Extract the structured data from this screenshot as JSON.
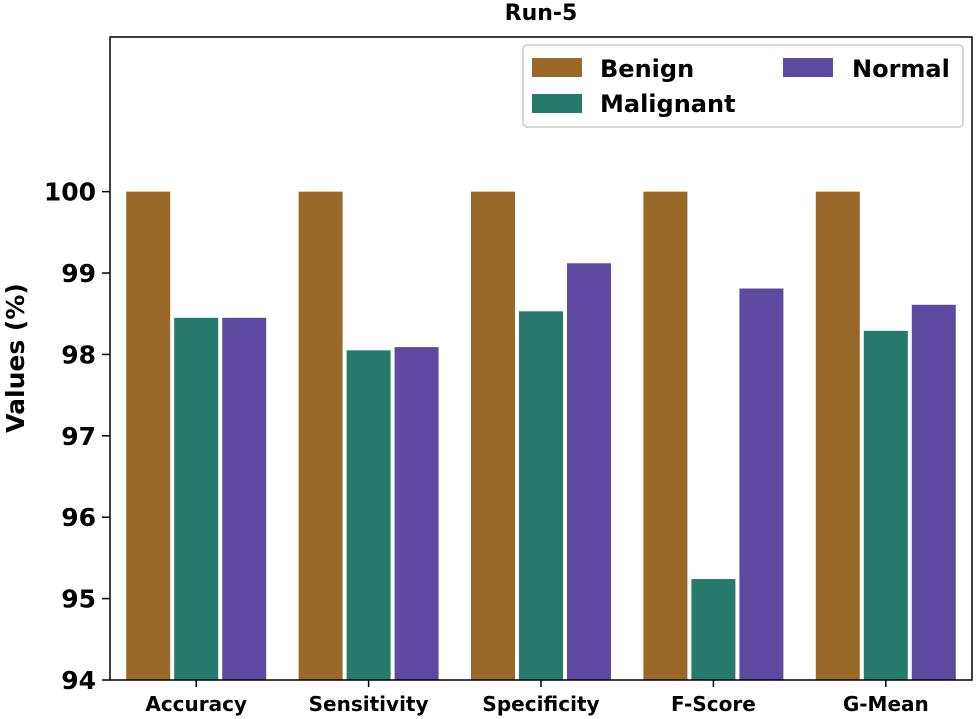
{
  "chart_data": {
    "type": "bar",
    "title": "Run-5",
    "xlabel": "",
    "ylabel": "Values (%)",
    "categories": [
      "Accuracy",
      "Sensitivity",
      "Specificity",
      "F-Score",
      "G-Mean"
    ],
    "series": [
      {
        "name": "Benign",
        "color": "#9a6829",
        "values": [
          100,
          100,
          100,
          100,
          100
        ]
      },
      {
        "name": "Malignant",
        "color": "#257a6b",
        "values": [
          98.45,
          98.05,
          98.53,
          95.24,
          98.29
        ]
      },
      {
        "name": "Normal",
        "color": "#5d4aa0",
        "values": [
          98.45,
          98.09,
          99.12,
          98.81,
          98.61
        ]
      }
    ],
    "ylim": [
      94,
      101.9
    ],
    "yticks": [
      "94",
      "95",
      "96",
      "97",
      "98",
      "99",
      "100"
    ],
    "grid": false,
    "legend": "top-right"
  }
}
